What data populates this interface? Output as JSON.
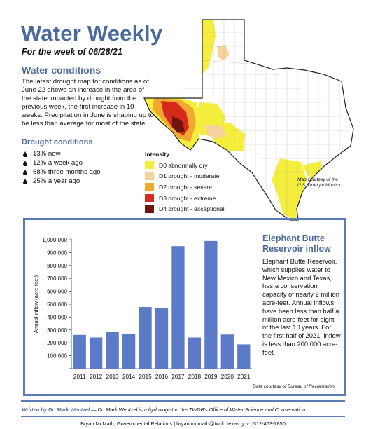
{
  "header": {
    "title": "Water Weekly",
    "subtitle": "For the week of 06/28/21"
  },
  "conditions": {
    "heading": "Water conditions",
    "body": "The latest drought map for conditions as of June 22 shows an increase in the area of the state impacted by drought from the previous week, the first increase in 10 weeks. Precipitation in June is shaping up to be less than average for most of the state.",
    "drought_heading": "Drought conditions",
    "drought_items": [
      "13% now",
      "12% a week ago",
      "68% three months ago",
      "25% a year ago"
    ]
  },
  "map_legend": {
    "title": "Intensity",
    "items": [
      {
        "label": "D0 abnormally dry",
        "color": "#f5ee3c"
      },
      {
        "label": "D1 drought - moderate",
        "color": "#f6d39a"
      },
      {
        "label": "D2 drought - severe",
        "color": "#f0a830"
      },
      {
        "label": "D3 drought - extreme",
        "color": "#d62a1c"
      },
      {
        "label": "D4 drought - exceptional",
        "color": "#6e1410"
      }
    ],
    "credit_line1": "Map courtesy of the",
    "credit_line2": "U.S. Drought Monitor"
  },
  "reservoir": {
    "title": "Elephant Butte Reservoir inflow",
    "body": "Elephant Butte Reservoir, which supplies water to New Mexico and Texas, has a conservation capacity of nearly 2 million acre-feet. Annual inflows have been less than half a million acre-feet for eight of the last 10 years. For the first half of 2021, inflow is less than 200,000 acre-feet.",
    "credit": "Data courtesy of Bureau of Reclamation"
  },
  "chart_data": {
    "type": "bar",
    "categories": [
      "2011",
      "2012",
      "2013",
      "2014",
      "2015",
      "2016",
      "2017",
      "2018",
      "2019",
      "2020",
      "2021"
    ],
    "values": [
      262000,
      242000,
      285000,
      272000,
      478000,
      473000,
      950000,
      242000,
      990000,
      265000,
      188000
    ],
    "ylabel": "Annual inflow (acre-feet)",
    "xlabel": "",
    "ylim": [
      0,
      1000000
    ],
    "yticks": [
      0,
      100000,
      200000,
      300000,
      400000,
      500000,
      600000,
      700000,
      800000,
      900000,
      1000000
    ],
    "ytick_labels": [
      "-",
      "100,000",
      "200,000",
      "300,000",
      "400,000",
      "500,000",
      "600,000",
      "700,000",
      "800,000",
      "900,000",
      "1,000,000"
    ],
    "bar_color": "#5b7bc9",
    "grid": false
  },
  "byline": {
    "author": "Written by Dr. Mark Wentzel",
    "text": " — Dr. Mark Wentzel is a hydrologist in the TWDB’s Office of Water Science and Conservation."
  },
  "footer": {
    "text": "Bryan McMath, Governmental Relations  |  bryan.mcmath@twdb.texas.gov  |  512-463-7850"
  },
  "colors": {
    "accent": "#4a6a9e",
    "frame": "#5b7bb6"
  }
}
